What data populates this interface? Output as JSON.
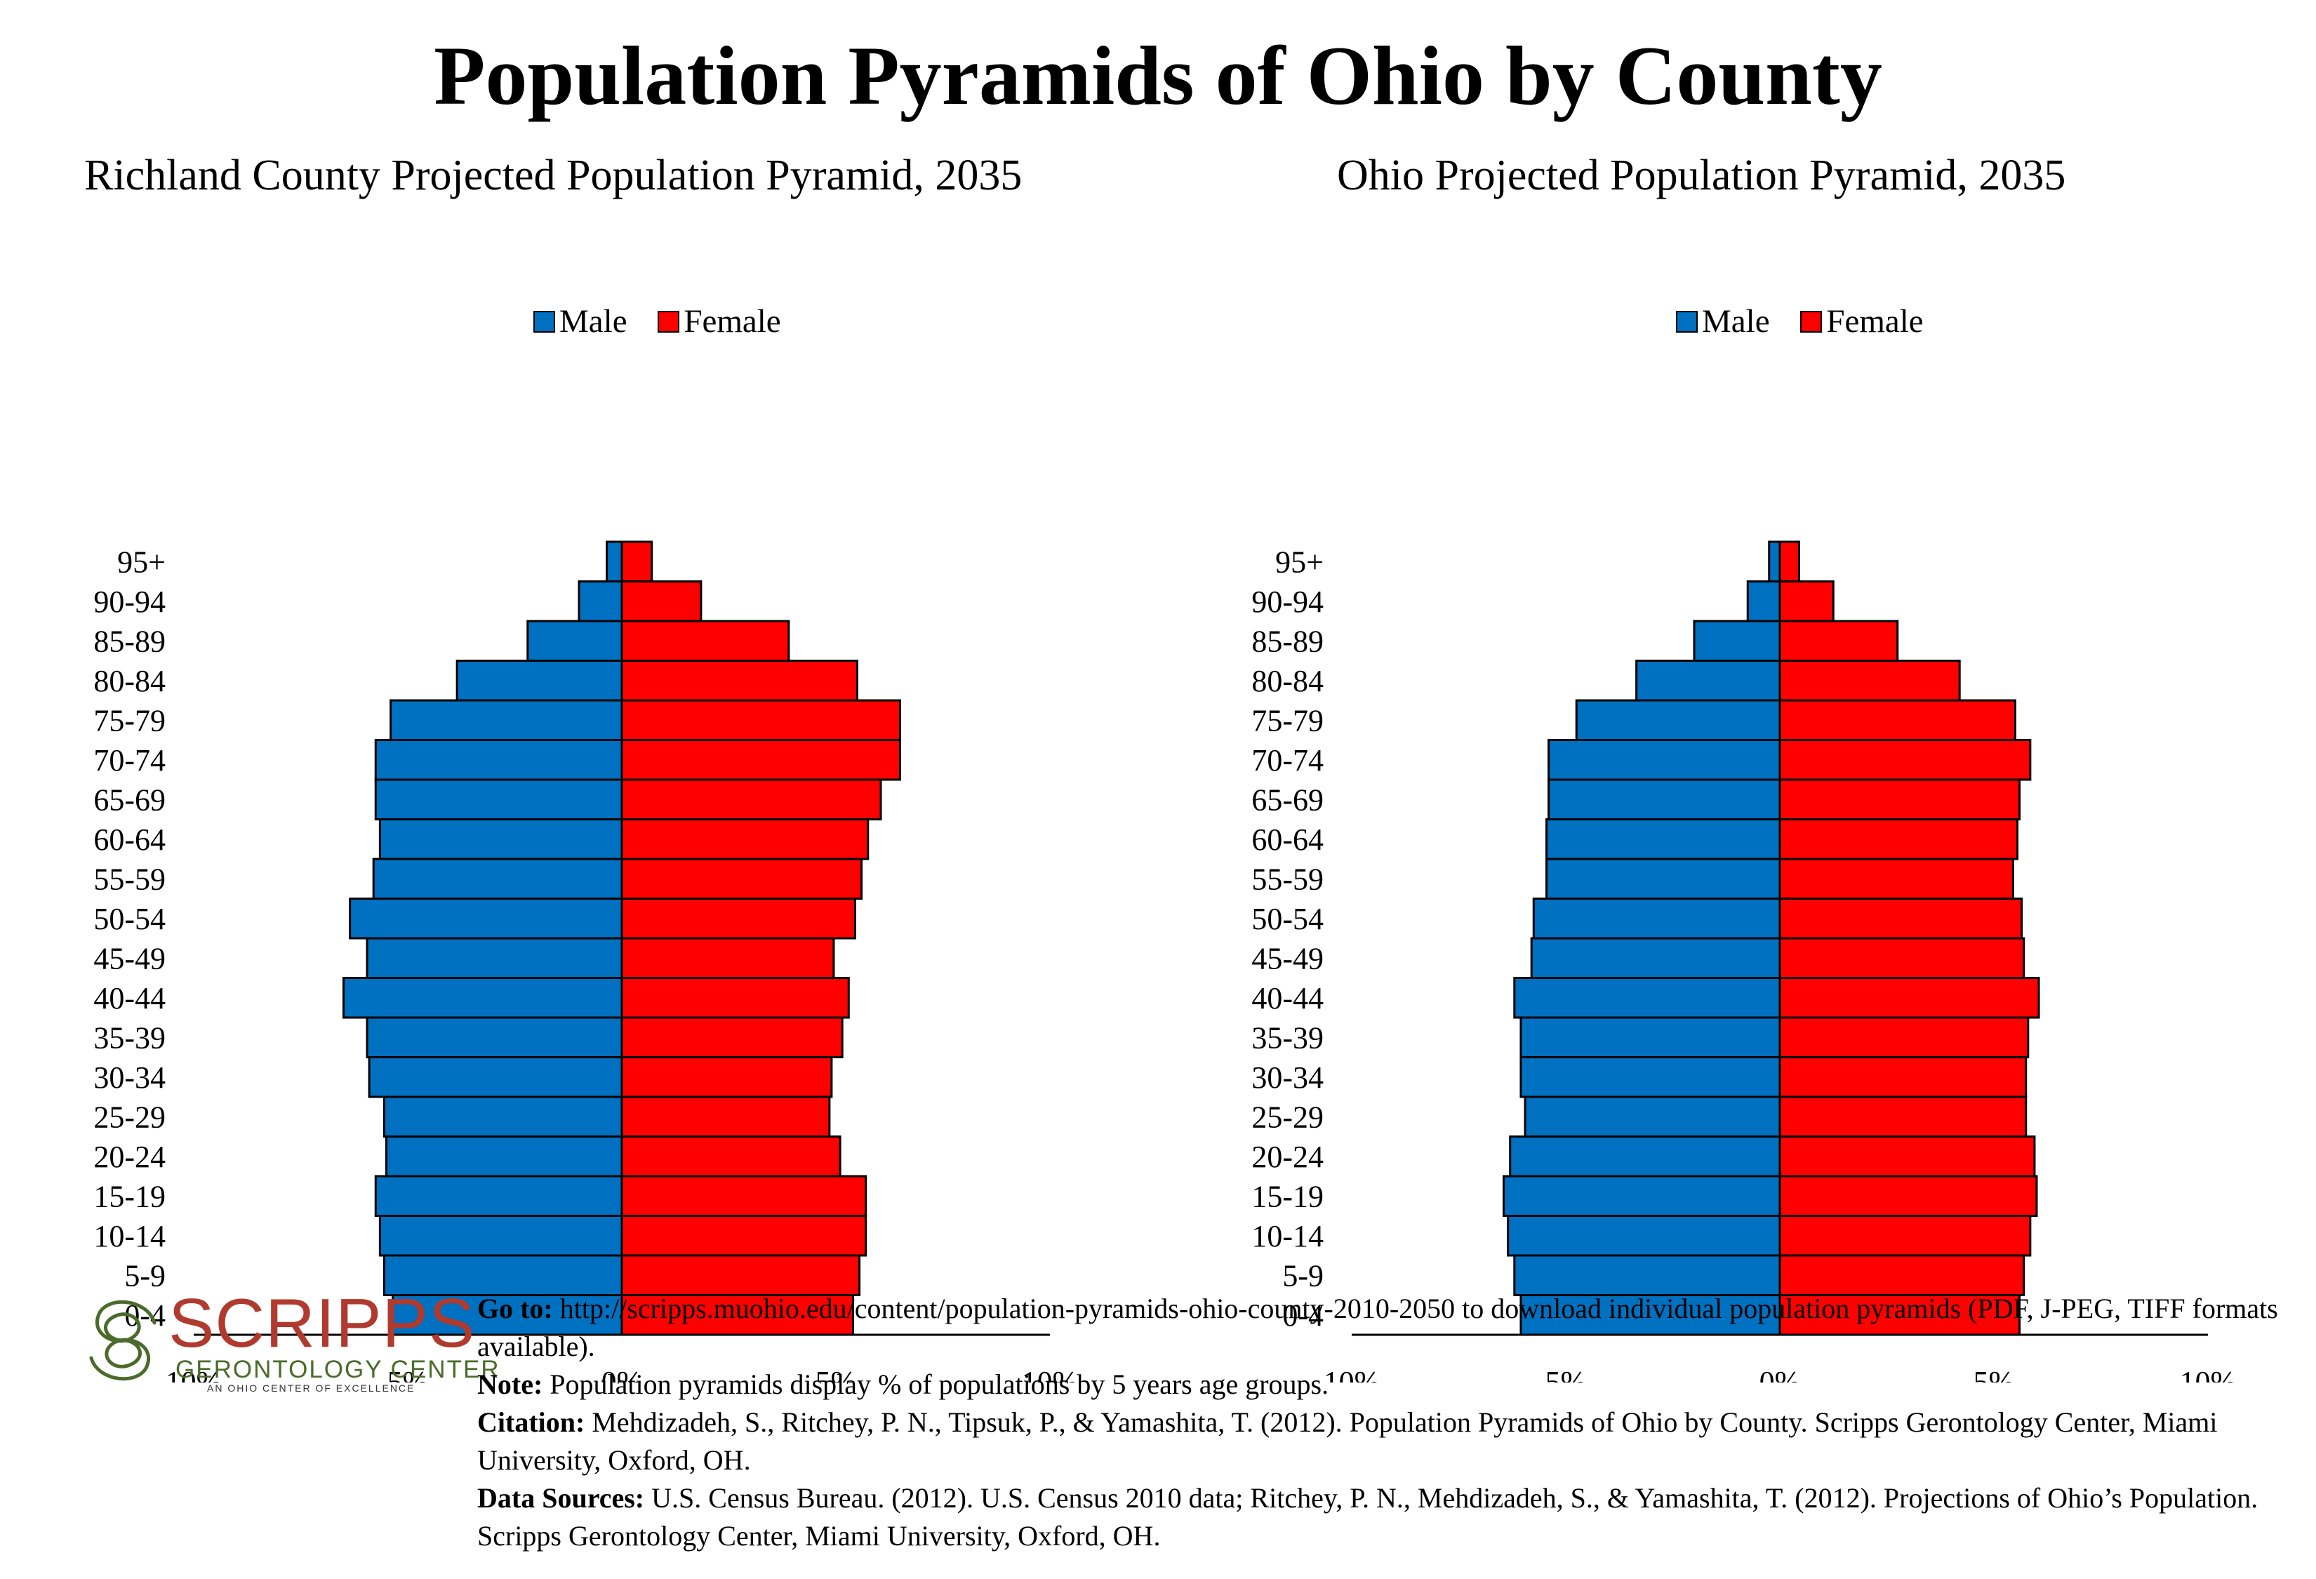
{
  "page_title": "Population Pyramids of Ohio by County",
  "chart_data": [
    {
      "type": "bar",
      "orientation": "horizontal-pyramid",
      "title": "Richland County Projected Population Pyramid, 2035",
      "legend": [
        "Male",
        "Female"
      ],
      "legend_position": "top",
      "categories": [
        "95+",
        "90-94",
        "85-89",
        "80-84",
        "75-79",
        "70-74",
        "65-69",
        "60-64",
        "55-59",
        "50-54",
        "45-49",
        "40-44",
        "35-39",
        "30-34",
        "25-29",
        "20-24",
        "15-19",
        "10-14",
        "5-9",
        "0-4"
      ],
      "series": [
        {
          "name": "Male",
          "color": "#0070c0",
          "values": [
            0.35,
            1.0,
            2.2,
            3.85,
            5.4,
            5.75,
            5.75,
            5.65,
            5.8,
            6.35,
            5.95,
            6.5,
            5.95,
            5.9,
            5.55,
            5.5,
            5.75,
            5.65,
            5.55,
            5.35
          ]
        },
        {
          "name": "Female",
          "color": "#ff0000",
          "values": [
            0.7,
            1.85,
            3.9,
            5.5,
            6.5,
            6.5,
            6.05,
            5.75,
            5.6,
            5.45,
            4.95,
            5.3,
            5.15,
            4.9,
            4.85,
            5.1,
            5.7,
            5.7,
            5.55,
            5.4
          ]
        }
      ],
      "xlim": [
        -10,
        10
      ],
      "xtick_labels": [
        "10%",
        "5%",
        "0%",
        "5%",
        "10%"
      ]
    },
    {
      "type": "bar",
      "orientation": "horizontal-pyramid",
      "title": "Ohio Projected Population Pyramid, 2035",
      "legend": [
        "Male",
        "Female"
      ],
      "legend_position": "top",
      "categories": [
        "95+",
        "90-94",
        "85-89",
        "80-84",
        "75-79",
        "70-74",
        "65-69",
        "60-64",
        "55-59",
        "50-54",
        "45-49",
        "40-44",
        "35-39",
        "30-34",
        "25-29",
        "20-24",
        "15-19",
        "10-14",
        "5-9",
        "0-4"
      ],
      "series": [
        {
          "name": "Male",
          "color": "#0070c0",
          "values": [
            0.25,
            0.75,
            2.0,
            3.35,
            4.75,
            5.4,
            5.4,
            5.45,
            5.45,
            5.75,
            5.8,
            6.2,
            6.05,
            6.05,
            5.95,
            6.3,
            6.45,
            6.35,
            6.2,
            6.05
          ]
        },
        {
          "name": "Female",
          "color": "#ff0000",
          "values": [
            0.45,
            1.25,
            2.75,
            4.2,
            5.5,
            5.85,
            5.6,
            5.55,
            5.45,
            5.65,
            5.7,
            6.05,
            5.8,
            5.75,
            5.75,
            5.95,
            6.0,
            5.85,
            5.7,
            5.6
          ]
        }
      ],
      "xlim": [
        -10,
        10
      ],
      "xtick_labels": [
        "10%",
        "5%",
        "0%",
        "5%",
        "10%"
      ]
    }
  ],
  "logo": {
    "name": "SCRIPPS",
    "subtitle": "GERONTOLOGY CENTER",
    "tagline": "AN OHIO CENTER OF EXCELLENCE",
    "brand_color": "#b03a2e",
    "accent_color": "#4a6b2a"
  },
  "notes": {
    "goto_label": "Go to:",
    "goto_text": " http://scripps.muohio.edu/content/population-pyramids-ohio-county-2010-2050 to download individual population pyramids (PDF, J-PEG, TIFF formats available).",
    "note_label": "Note:",
    "note_text": " Population pyramids display % of populations by 5 years age groups.",
    "citation_label": "Citation:",
    "citation_text": " Mehdizadeh, S., Ritchey, P. N., Tipsuk, P., & Yamashita, T. (2012). Population Pyramids of Ohio by County. Scripps Gerontology Center, Miami University, Oxford, OH.",
    "sources_label": "Data Sources:",
    "sources_text": " U.S. Census Bureau. (2012). U.S. Census 2010 data; Ritchey, P. N., Mehdizadeh, S., & Yamashita, T. (2012). Projections of Ohio’s Population. Scripps Gerontology Center, Miami University, Oxford, OH."
  }
}
